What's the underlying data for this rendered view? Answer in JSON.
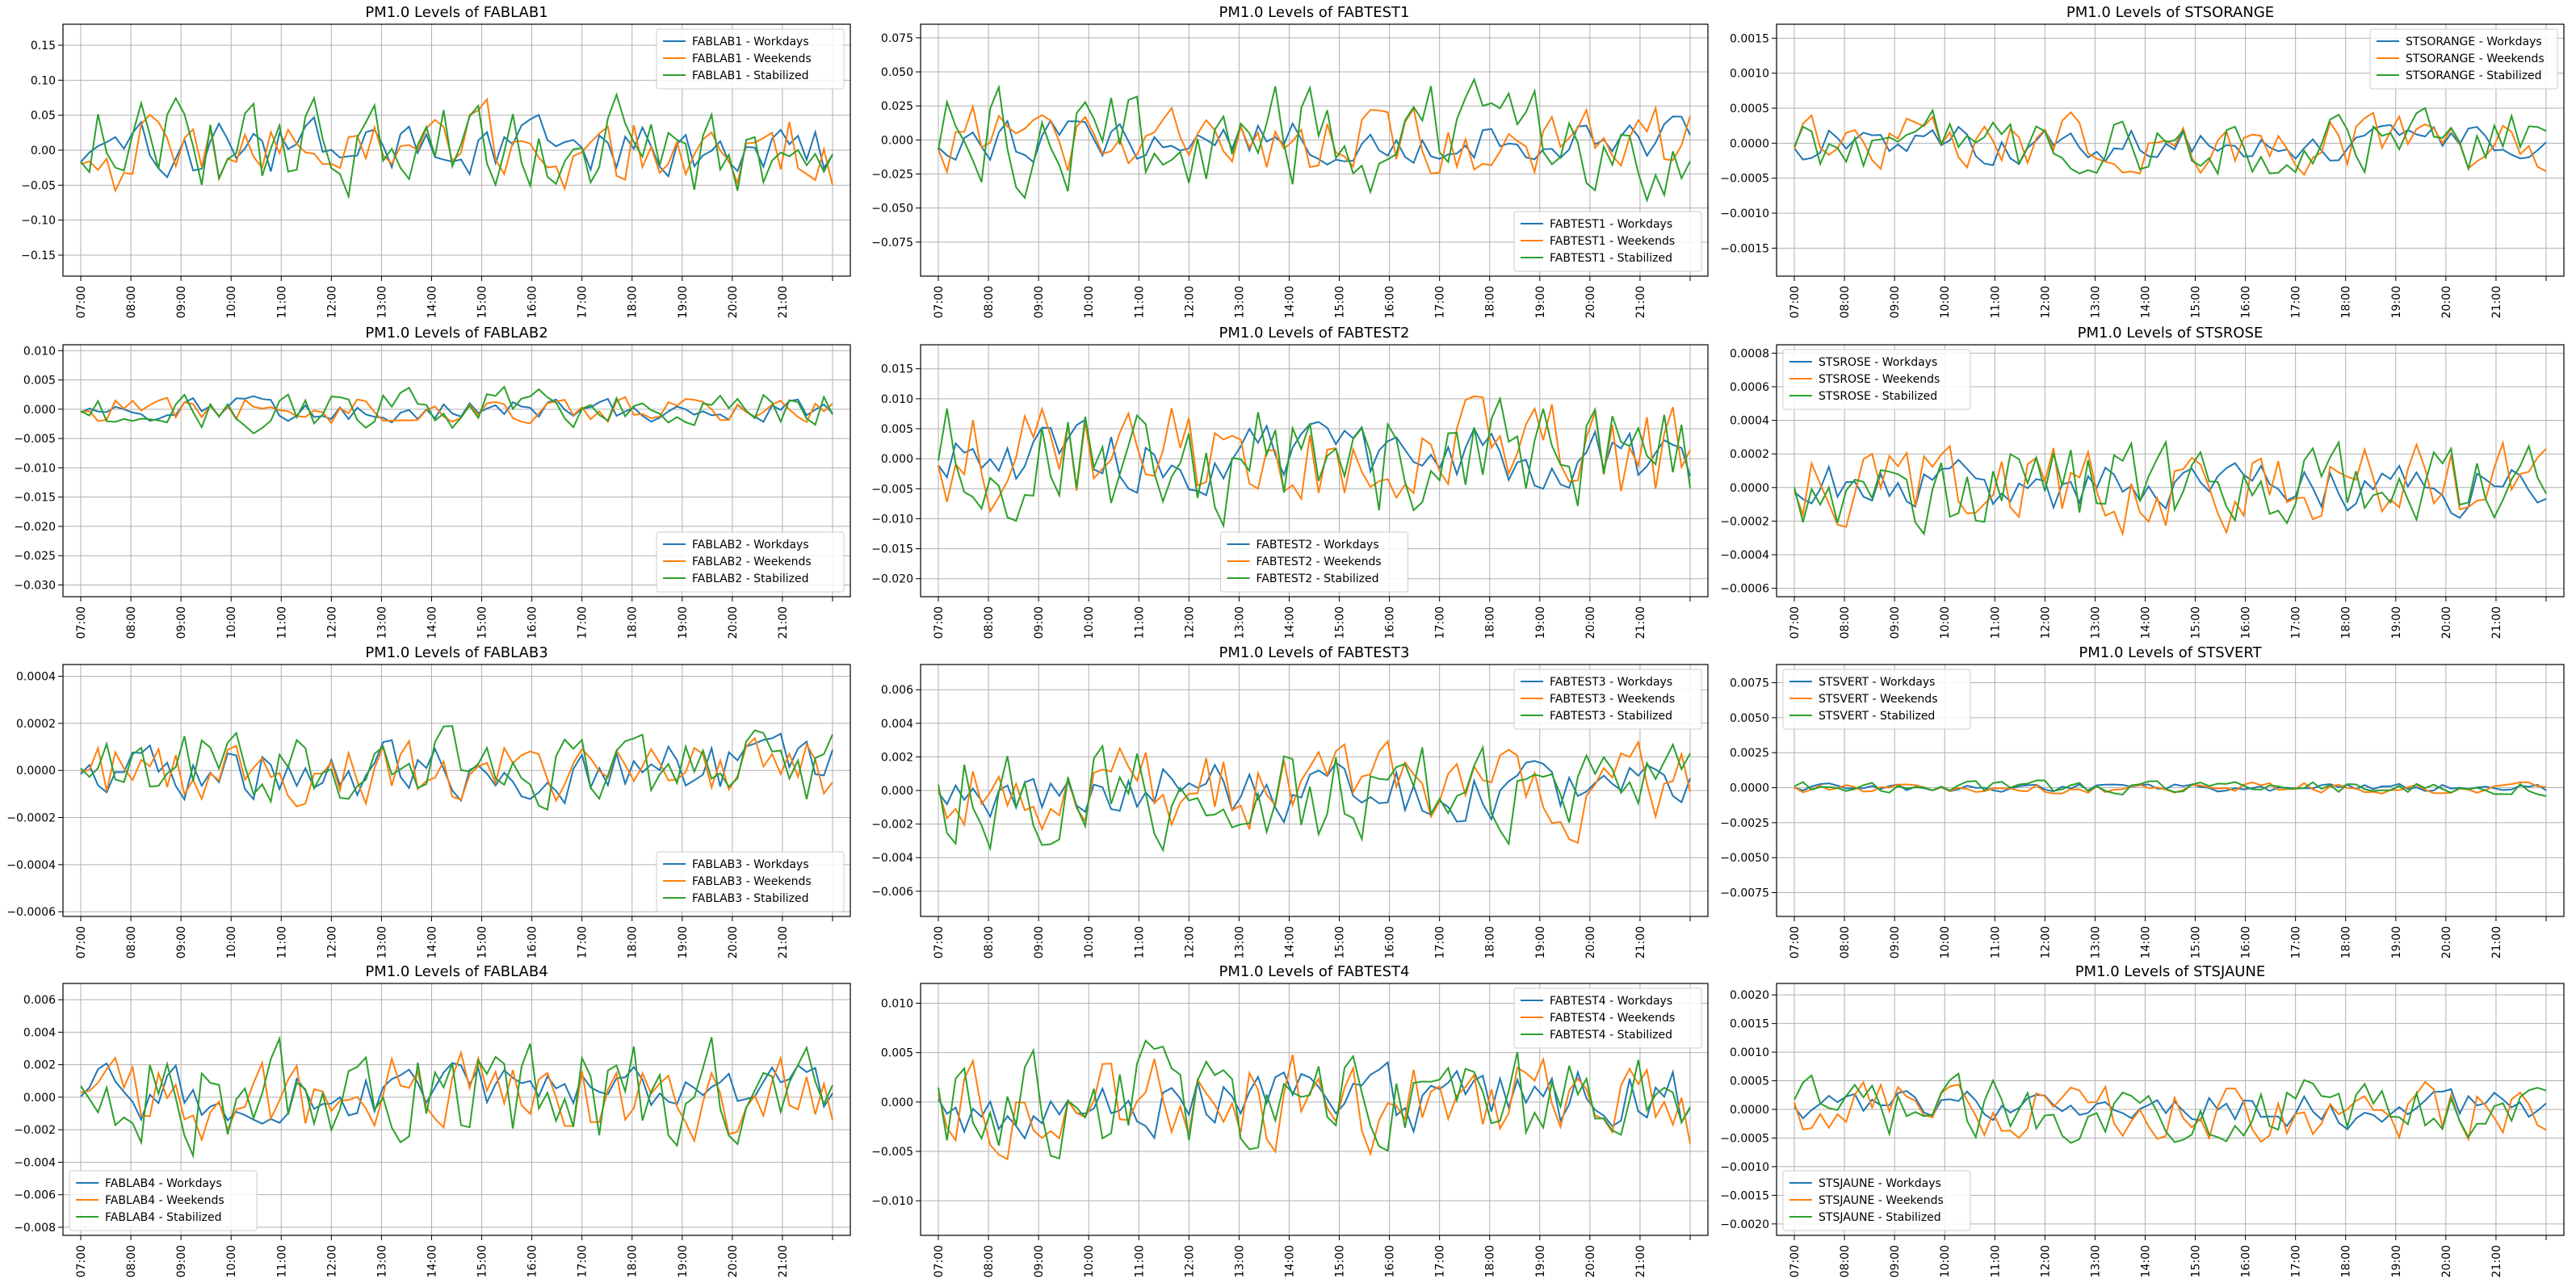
{
  "figure": {
    "series_colors": [
      "#1f77b4",
      "#ff7f0e",
      "#2ca02c"
    ],
    "x_tick_labels": [
      "07:00",
      "08:00",
      "09:00",
      "10:00",
      "11:00",
      "12:00",
      "13:00",
      "14:00",
      "15:00",
      "16:00",
      "17:00",
      "18:00",
      "19:00",
      "20:00",
      "21:00"
    ]
  },
  "chart_data": [
    {
      "type": "line",
      "title": "PM1.0 Levels of FABLAB1",
      "ylim": [
        -0.18,
        0.18
      ],
      "yticks": [
        -0.15,
        -0.1,
        -0.05,
        0.0,
        0.05,
        0.1,
        0.15
      ],
      "ytick_labels": [
        "−0.15",
        "−0.10",
        "−0.05",
        "0.00",
        "0.05",
        "0.10",
        "0.15"
      ],
      "legend": "top-right",
      "grid": true,
      "amp": [
        0.04,
        0.06,
        0.07
      ],
      "seed": 11,
      "x_range": [
        "07:00",
        "22:00"
      ],
      "series": [
        {
          "name": "FABLAB1 - Workdays"
        },
        {
          "name": "FABLAB1 - Weekends"
        },
        {
          "name": "FABLAB1 - Stabilized"
        }
      ]
    },
    {
      "type": "line",
      "title": "PM1.0 Levels of FABTEST1",
      "ylim": [
        -0.1,
        0.085
      ],
      "yticks": [
        -0.075,
        -0.05,
        -0.025,
        0.0,
        0.025,
        0.05,
        0.075
      ],
      "ytick_labels": [
        "−0.075",
        "−0.050",
        "−0.025",
        "0.000",
        "0.025",
        "0.050",
        "0.075"
      ],
      "legend": "bottom-right",
      "grid": true,
      "amp": [
        0.015,
        0.025,
        0.04
      ],
      "seed": 23,
      "series": [
        {
          "name": "FABTEST1 - Workdays"
        },
        {
          "name": "FABTEST1 - Weekends"
        },
        {
          "name": "FABTEST1 - Stabilized"
        }
      ]
    },
    {
      "type": "line",
      "title": "PM1.0 Levels of STSORANGE",
      "ylim": [
        -0.0019,
        0.0017
      ],
      "yticks": [
        -0.0015,
        -0.001,
        -0.0005,
        0.0,
        0.0005,
        0.001,
        0.0015
      ],
      "ytick_labels": [
        "−0.0015",
        "−0.0010",
        "−0.0005",
        "0.0000",
        "0.0005",
        "0.0010",
        "0.0015"
      ],
      "legend": "top-right",
      "grid": true,
      "amp": [
        0.00025,
        0.0004,
        0.00045
      ],
      "seed": 37,
      "series": [
        {
          "name": "STSORANGE - Workdays"
        },
        {
          "name": "STSORANGE - Weekends"
        },
        {
          "name": "STSORANGE - Stabilized"
        }
      ]
    },
    {
      "type": "line",
      "title": "PM1.0 Levels of FABLAB2",
      "ylim": [
        -0.032,
        0.011
      ],
      "yticks": [
        -0.03,
        -0.025,
        -0.02,
        -0.015,
        -0.01,
        -0.005,
        0.0,
        0.005,
        0.01
      ],
      "ytick_labels": [
        "−0.030",
        "−0.025",
        "−0.020",
        "−0.015",
        "−0.010",
        "−0.005",
        "0.000",
        "0.005",
        "0.010"
      ],
      "legend": "bottom-right",
      "grid": true,
      "amp": [
        0.002,
        0.0025,
        0.0035
      ],
      "seed": 41,
      "series": [
        {
          "name": "FABLAB2 - Workdays"
        },
        {
          "name": "FABLAB2 - Weekends"
        },
        {
          "name": "FABLAB2 - Stabilized"
        }
      ]
    },
    {
      "type": "line",
      "title": "PM1.0 Levels of FABTEST2",
      "ylim": [
        -0.023,
        0.019
      ],
      "yticks": [
        -0.02,
        -0.015,
        -0.01,
        -0.005,
        0.0,
        0.005,
        0.01,
        0.015
      ],
      "ytick_labels": [
        "−0.020",
        "−0.015",
        "−0.010",
        "−0.005",
        "0.000",
        "0.005",
        "0.010",
        "0.015"
      ],
      "legend": "bottom-center",
      "grid": true,
      "amp": [
        0.005,
        0.009,
        0.01
      ],
      "seed": 53,
      "series": [
        {
          "name": "FABTEST2 - Workdays"
        },
        {
          "name": "FABTEST2 - Weekends"
        },
        {
          "name": "FABTEST2 - Stabilized"
        }
      ]
    },
    {
      "type": "line",
      "title": "PM1.0 Levels of STSROSE",
      "ylim": [
        -0.00065,
        0.00085
      ],
      "yticks": [
        -0.0006,
        -0.0004,
        -0.0002,
        0.0,
        0.0002,
        0.0004,
        0.0006,
        0.0008
      ],
      "ytick_labels": [
        "−0.0006",
        "−0.0004",
        "−0.0002",
        "0.0000",
        "0.0002",
        "0.0004",
        "0.0006",
        "0.0008"
      ],
      "legend": "top-left",
      "grid": true,
      "amp": [
        0.00015,
        0.00025,
        0.00025
      ],
      "seed": 61,
      "series": [
        {
          "name": "STSROSE - Workdays"
        },
        {
          "name": "STSROSE - Weekends"
        },
        {
          "name": "STSROSE - Stabilized"
        }
      ]
    },
    {
      "type": "line",
      "title": "PM1.0 Levels of FABLAB3",
      "ylim": [
        -0.00062,
        0.00045
      ],
      "yticks": [
        -0.0006,
        -0.0004,
        -0.0002,
        0.0,
        0.0002,
        0.0004
      ],
      "ytick_labels": [
        "−0.0006",
        "−0.0004",
        "−0.0002",
        "0.0000",
        "0.0002",
        "0.0004"
      ],
      "legend": "bottom-right",
      "grid": true,
      "amp": [
        0.00012,
        0.00014,
        0.00016
      ],
      "seed": 71,
      "series": [
        {
          "name": "FABLAB3 - Workdays"
        },
        {
          "name": "FABLAB3 - Weekends"
        },
        {
          "name": "FABLAB3 - Stabilized"
        }
      ]
    },
    {
      "type": "line",
      "title": "PM1.0 Levels of FABTEST3",
      "ylim": [
        -0.0075,
        0.0075
      ],
      "yticks": [
        -0.006,
        -0.004,
        -0.002,
        0.0,
        0.002,
        0.004,
        0.006
      ],
      "ytick_labels": [
        "−0.006",
        "−0.004",
        "−0.002",
        "0.000",
        "0.002",
        "0.004",
        "0.006"
      ],
      "legend": "top-right",
      "grid": true,
      "amp": [
        0.0017,
        0.0025,
        0.003
      ],
      "seed": 83,
      "series": [
        {
          "name": "FABTEST3 - Workdays"
        },
        {
          "name": "FABTEST3 - Weekends"
        },
        {
          "name": "FABTEST3 - Stabilized"
        }
      ]
    },
    {
      "type": "line",
      "title": "PM1.0 Levels of STSVERT",
      "ylim": [
        -0.0092,
        0.0088
      ],
      "yticks": [
        -0.0075,
        -0.005,
        -0.0025,
        0.0,
        0.0025,
        0.005,
        0.0075
      ],
      "ytick_labels": [
        "−0.0075",
        "−0.0050",
        "−0.0025",
        "0.0000",
        "0.0025",
        "0.0050",
        "0.0075"
      ],
      "legend": "top-left",
      "grid": true,
      "amp": [
        0.0003,
        0.0004,
        0.0005
      ],
      "seed": 97,
      "series": [
        {
          "name": "STSVERT - Workdays"
        },
        {
          "name": "STSVERT - Weekends"
        },
        {
          "name": "STSVERT - Stabilized"
        }
      ]
    },
    {
      "type": "line",
      "title": "PM1.0 Levels of FABLAB4",
      "ylim": [
        -0.0085,
        0.007
      ],
      "yticks": [
        -0.008,
        -0.006,
        -0.004,
        -0.002,
        0.0,
        0.002,
        0.004,
        0.006
      ],
      "ytick_labels": [
        "−0.008",
        "−0.006",
        "−0.004",
        "−0.002",
        "0.000",
        "0.002",
        "0.004",
        "0.006"
      ],
      "legend": "bottom-left",
      "grid": true,
      "amp": [
        0.0018,
        0.0026,
        0.0034
      ],
      "seed": 101,
      "series": [
        {
          "name": "FABLAB4 - Workdays"
        },
        {
          "name": "FABLAB4 - Weekends"
        },
        {
          "name": "FABLAB4 - Stabilized"
        }
      ]
    },
    {
      "type": "line",
      "title": "PM1.0 Levels of FABTEST4",
      "ylim": [
        -0.0135,
        0.012
      ],
      "yticks": [
        -0.01,
        -0.005,
        0.0,
        0.005,
        0.01
      ],
      "ytick_labels": [
        "−0.010",
        "−0.005",
        "0.000",
        "0.005",
        "0.010"
      ],
      "legend": "top-right",
      "grid": true,
      "amp": [
        0.0035,
        0.005,
        0.0055
      ],
      "seed": 113,
      "series": [
        {
          "name": "FABTEST4 - Workdays"
        },
        {
          "name": "FABTEST4 - Weekends"
        },
        {
          "name": "FABTEST4 - Stabilized"
        }
      ]
    },
    {
      "type": "line",
      "title": "PM1.0 Levels of STSJAUNE",
      "ylim": [
        -0.0022,
        0.0022
      ],
      "yticks": [
        -0.002,
        -0.0015,
        -0.001,
        -0.0005,
        0.0,
        0.0005,
        0.001,
        0.0015,
        0.002
      ],
      "ytick_labels": [
        "−0.0020",
        "−0.0015",
        "−0.0010",
        "−0.0005",
        "0.0000",
        "0.0005",
        "0.0010",
        "0.0015",
        "0.0020"
      ],
      "legend": "bottom-left",
      "grid": true,
      "amp": [
        0.0003,
        0.0005,
        0.0005
      ],
      "seed": 127,
      "series": [
        {
          "name": "STSJAUNE - Workdays"
        },
        {
          "name": "STSJAUNE - Weekends"
        },
        {
          "name": "STSJAUNE - Stabilized"
        }
      ]
    }
  ]
}
